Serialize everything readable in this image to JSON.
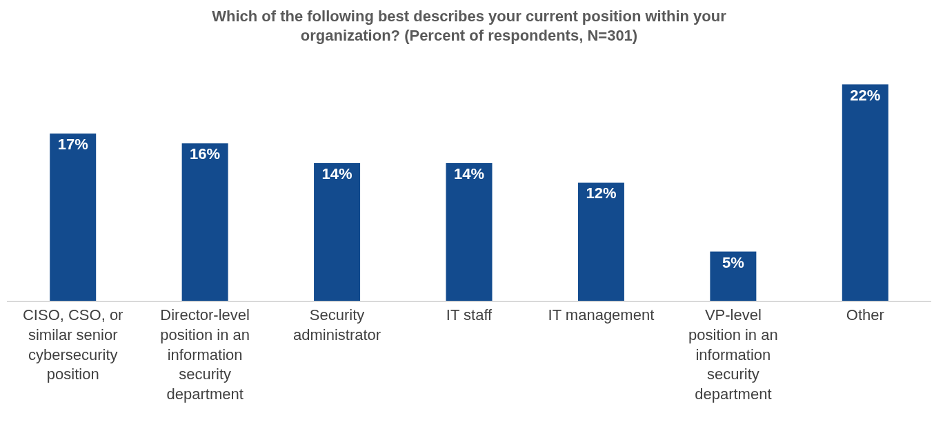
{
  "chart_data": {
    "type": "bar",
    "title": "Which of the following best describes your current position within your organization? (Percent of respondents, N=301)",
    "categories": [
      "CISO, CSO, or similar senior cybersecurity position",
      "Director-level position in an information security department",
      "Security administrator",
      "IT staff",
      "IT management",
      "VP-level position in an information security department",
      "Other"
    ],
    "values": [
      17,
      16,
      14,
      14,
      12,
      5,
      22
    ],
    "value_labels": [
      "17%",
      "16%",
      "14%",
      "14%",
      "12%",
      "5%",
      "22%"
    ],
    "color": "#134b8e"
  }
}
